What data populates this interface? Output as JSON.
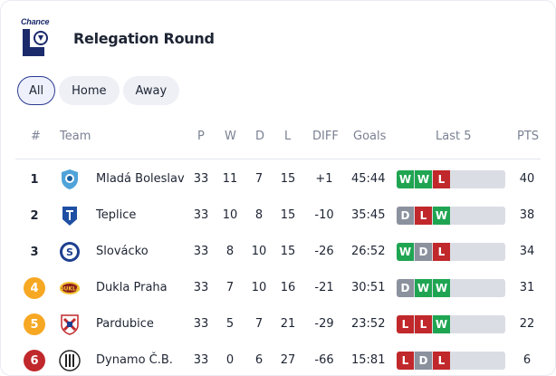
{
  "header": {
    "logo_text": "Chance",
    "title": "Relegation Round"
  },
  "filters": [
    {
      "label": "All",
      "active": true
    },
    {
      "label": "Home",
      "active": false
    },
    {
      "label": "Away",
      "active": false
    }
  ],
  "columns": {
    "rank": "#",
    "team": "Team",
    "played": "P",
    "won": "W",
    "drawn": "D",
    "lost": "L",
    "diff": "DIFF",
    "goals": "Goals",
    "last5": "Last 5",
    "points": "PTS"
  },
  "colors": {
    "win": "#1fa552",
    "draw": "#8c919e",
    "loss": "#c1282b",
    "rank_orange": "#f7a823",
    "rank_red": "#c0282b"
  },
  "rows": [
    {
      "rank": "1",
      "rank_style": "plain",
      "crest": "mlada-boleslav-crest-icon",
      "team": "Mladá Boleslav",
      "p": "33",
      "w": "11",
      "d": "7",
      "l": "15",
      "diff": "+1",
      "goals": "45:44",
      "last5": [
        "W",
        "W",
        "L"
      ],
      "pts": "40"
    },
    {
      "rank": "2",
      "rank_style": "plain",
      "crest": "teplice-crest-icon",
      "team": "Teplice",
      "p": "33",
      "w": "10",
      "d": "8",
      "l": "15",
      "diff": "-10",
      "goals": "35:45",
      "last5": [
        "D",
        "L",
        "W"
      ],
      "pts": "38"
    },
    {
      "rank": "3",
      "rank_style": "plain",
      "crest": "slovacko-crest-icon",
      "team": "Slovácko",
      "p": "33",
      "w": "8",
      "d": "10",
      "l": "15",
      "diff": "-26",
      "goals": "26:52",
      "last5": [
        "W",
        "D",
        "L"
      ],
      "pts": "34"
    },
    {
      "rank": "4",
      "rank_style": "orange",
      "crest": "dukla-praha-crest-icon",
      "team": "Dukla Praha",
      "p": "33",
      "w": "7",
      "d": "10",
      "l": "16",
      "diff": "-21",
      "goals": "30:51",
      "last5": [
        "D",
        "W",
        "W"
      ],
      "pts": "31"
    },
    {
      "rank": "5",
      "rank_style": "orange",
      "crest": "pardubice-crest-icon",
      "team": "Pardubice",
      "p": "33",
      "w": "5",
      "d": "7",
      "l": "21",
      "diff": "-29",
      "goals": "23:52",
      "last5": [
        "L",
        "L",
        "W"
      ],
      "pts": "22"
    },
    {
      "rank": "6",
      "rank_style": "red",
      "crest": "dynamo-cb-crest-icon",
      "team": "Dynamo Č.B.",
      "p": "33",
      "w": "0",
      "d": "6",
      "l": "27",
      "diff": "-66",
      "goals": "15:81",
      "last5": [
        "L",
        "D",
        "L"
      ],
      "pts": "6"
    }
  ]
}
